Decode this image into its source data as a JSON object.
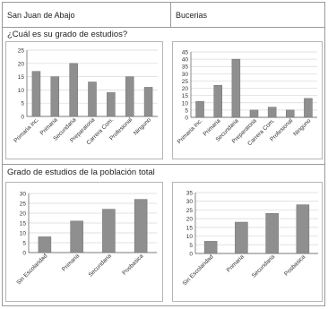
{
  "header": {
    "left": "San Juan de Abajo",
    "right": "Bucerias"
  },
  "section1_title": "¿Cuál es su grado de estudios?",
  "section2_title": "Grado de estudios de la población total",
  "colors": {
    "bar": "#8f8f8f",
    "bar_edge": "#6f6f6f",
    "grid": "#d8d8d8",
    "axis": "#555555"
  },
  "chart_data": [
    {
      "type": "bar",
      "title": "",
      "categories": [
        "Primaria inc.",
        "Primaria",
        "Secundaria",
        "Preparatoria",
        "Carrera Com.",
        "Profesional",
        "Ninguno"
      ],
      "values": [
        17,
        15,
        20,
        13,
        9,
        15,
        11
      ],
      "ylim": [
        0,
        25
      ],
      "yticks": [
        0,
        5,
        10,
        15,
        20,
        25
      ],
      "grid": true
    },
    {
      "type": "bar",
      "title": "",
      "categories": [
        "Primaria Inc.",
        "Primaria",
        "Secundaria",
        "Preparatoria",
        "Carrera Com.",
        "Profesional",
        "Ninguno"
      ],
      "values": [
        11,
        22,
        40,
        5,
        7,
        5,
        13
      ],
      "ylim": [
        0,
        45
      ],
      "yticks": [
        0,
        5,
        10,
        15,
        20,
        25,
        30,
        35,
        40,
        45
      ],
      "grid": true
    },
    {
      "type": "bar",
      "title": "",
      "categories": [
        "Sin Escolaridad",
        "Primaria",
        "Secundaria",
        "Posbasica"
      ],
      "values": [
        8,
        16,
        22,
        27
      ],
      "ylim": [
        0,
        30
      ],
      "yticks": [
        0,
        5,
        10,
        15,
        20,
        25,
        30
      ],
      "grid": true
    },
    {
      "type": "bar",
      "title": "",
      "categories": [
        "Sin Escolaridad",
        "Primaria",
        "Secundaria",
        "Posbasica"
      ],
      "values": [
        7,
        18,
        23,
        28
      ],
      "ylim": [
        0,
        35
      ],
      "yticks": [
        0,
        5,
        10,
        15,
        20,
        25,
        30,
        35
      ],
      "grid": true
    }
  ]
}
